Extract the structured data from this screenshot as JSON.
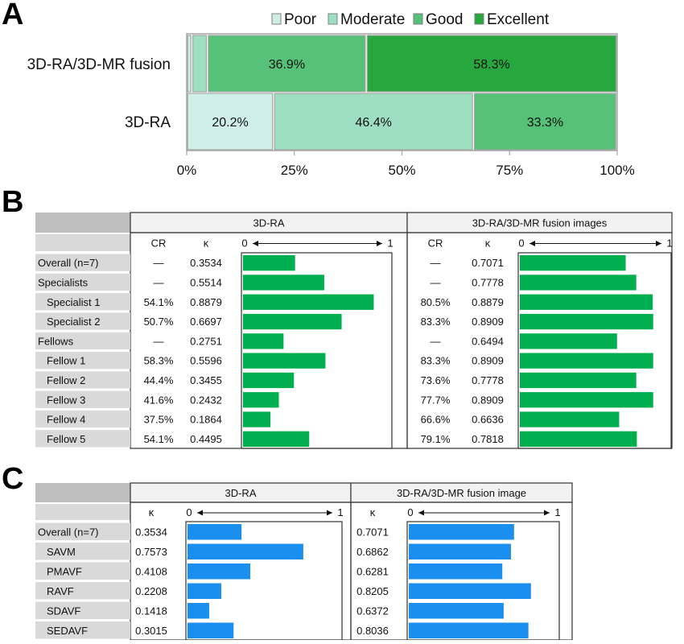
{
  "panels": {
    "A": "A",
    "B": "B",
    "C": "C"
  },
  "colors": {
    "poor": "#cfeee6",
    "moderate": "#9fdfc1",
    "good": "#55c277",
    "excellent": "#27a83e",
    "bar_green": "#00b050",
    "bar_blue": "#1a8ff0",
    "row_label_bg": "#d9d9d9",
    "corner_bg": "#bfbfbf",
    "frame": "#7f7f7f"
  },
  "chart_data": [
    {
      "type": "bar",
      "orientation": "horizontal-stacked-percent",
      "legend": [
        "Poor",
        "Moderate",
        "Good",
        "Excellent"
      ],
      "legend_position": "top",
      "categories": [
        "3D-RA/3D-MR fusion",
        "3D-RA"
      ],
      "series": [
        {
          "name": "Poor",
          "values": [
            1.2,
            20.2
          ]
        },
        {
          "name": "Moderate",
          "values": [
            3.6,
            46.4
          ]
        },
        {
          "name": "Good",
          "values": [
            36.9,
            33.3
          ]
        },
        {
          "name": "Excellent",
          "values": [
            58.3,
            0
          ]
        }
      ],
      "segment_labels": [
        [
          "",
          "",
          "36.9%",
          "58.3%"
        ],
        [
          "20.2%",
          "46.4%",
          "33.3%",
          ""
        ]
      ],
      "xticks": [
        "0%",
        "25%",
        "50%",
        "75%",
        "100%"
      ],
      "xlim": [
        0,
        100
      ]
    },
    {
      "type": "table",
      "groups": [
        "3D-RA",
        "3D-RA/3D-MR fusion images"
      ],
      "col_headers": {
        "cr": "CR",
        "kappa": "κ",
        "axis_min": "0",
        "axis_max": "1"
      },
      "rows": [
        {
          "label": "Overall (n=7)",
          "indent": false,
          "cr1": "—",
          "k1": "0.3534",
          "v1": 0.3534,
          "cr2": "—",
          "k2": "0.7071",
          "v2": 0.7071
        },
        {
          "label": "Specialists",
          "indent": false,
          "cr1": "—",
          "k1": "0.5514",
          "v1": 0.5514,
          "cr2": "—",
          "k2": "0.7778",
          "v2": 0.7778
        },
        {
          "label": "Specialist 1",
          "indent": true,
          "cr1": "54.1%",
          "k1": "0.8879",
          "v1": 0.8879,
          "cr2": "80.5%",
          "k2": "0.8879",
          "v2": 0.8879
        },
        {
          "label": "Specialist 2",
          "indent": true,
          "cr1": "50.7%",
          "k1": "0.6697",
          "v1": 0.6697,
          "cr2": "83.3%",
          "k2": "0.8909",
          "v2": 0.8909
        },
        {
          "label": "Fellows",
          "indent": false,
          "cr1": "—",
          "k1": "0.2751",
          "v1": 0.2751,
          "cr2": "—",
          "k2": "0.6494",
          "v2": 0.6494
        },
        {
          "label": "Fellow 1",
          "indent": true,
          "cr1": "58.3%",
          "k1": "0.5596",
          "v1": 0.5596,
          "cr2": "83.3%",
          "k2": "0.8909",
          "v2": 0.8909
        },
        {
          "label": "Fellow 2",
          "indent": true,
          "cr1": "44.4%",
          "k1": "0.3455",
          "v1": 0.3455,
          "cr2": "73.6%",
          "k2": "0.7778",
          "v2": 0.7778
        },
        {
          "label": "Fellow 3",
          "indent": true,
          "cr1": "41.6%",
          "k1": "0.2432",
          "v1": 0.2432,
          "cr2": "77.7%",
          "k2": "0.8909",
          "v2": 0.8909
        },
        {
          "label": "Fellow 4",
          "indent": true,
          "cr1": "37.5%",
          "k1": "0.1864",
          "v1": 0.1864,
          "cr2": "66.6%",
          "k2": "0.6636",
          "v2": 0.6636
        },
        {
          "label": "Fellow 5",
          "indent": true,
          "cr1": "54.1%",
          "k1": "0.4495",
          "v1": 0.4495,
          "cr2": "79.1%",
          "k2": "0.7818",
          "v2": 0.7818
        }
      ]
    },
    {
      "type": "table",
      "groups": [
        "3D-RA",
        "3D-RA/3D-MR fusion image"
      ],
      "col_headers": {
        "kappa": "κ",
        "axis_min": "0",
        "axis_max": "1"
      },
      "rows": [
        {
          "label": "Overall (n=7)",
          "indent": false,
          "k1": "0.3534",
          "v1": 0.3534,
          "k2": "0.7071",
          "v2": 0.7071
        },
        {
          "label": "SAVM",
          "indent": true,
          "k1": "0.7573",
          "v1": 0.7573,
          "k2": "0.6862",
          "v2": 0.6862
        },
        {
          "label": "PMAVF",
          "indent": true,
          "k1": "0.4108",
          "v1": 0.4108,
          "k2": "0.6281",
          "v2": 0.6281
        },
        {
          "label": "RAVF",
          "indent": true,
          "k1": "0.2208",
          "v1": 0.2208,
          "k2": "0.8205",
          "v2": 0.8205
        },
        {
          "label": "SDAVF",
          "indent": true,
          "k1": "0.1418",
          "v1": 0.1418,
          "k2": "0.6372",
          "v2": 0.6372
        },
        {
          "label": "SEDAVF",
          "indent": true,
          "k1": "0.3015",
          "v1": 0.3015,
          "k2": "0.8036",
          "v2": 0.8036
        }
      ]
    }
  ]
}
